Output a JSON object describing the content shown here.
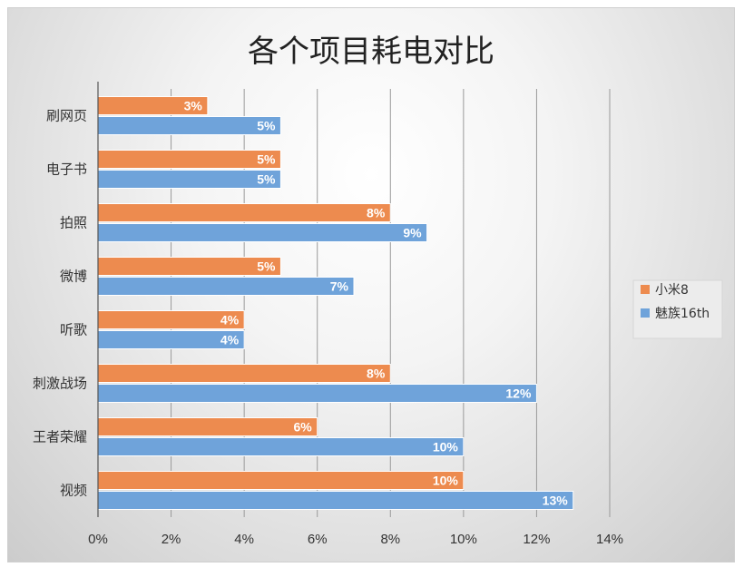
{
  "chart_data": {
    "type": "bar",
    "orientation": "horizontal",
    "title": "各个项目耗电对比",
    "categories": [
      "刷网页",
      "电子书",
      "拍照",
      "微博",
      "听歌",
      "刺激战场",
      "王者荣耀",
      "视频"
    ],
    "series": [
      {
        "name": "小米8",
        "color": "#ED8B4F",
        "values": [
          3,
          5,
          8,
          5,
          4,
          8,
          6,
          10
        ]
      },
      {
        "name": "魅族16th",
        "color": "#6FA3DA",
        "values": [
          5,
          5,
          9,
          7,
          4,
          12,
          10,
          13
        ]
      }
    ],
    "xlim": [
      0,
      14
    ],
    "xticks": [
      0,
      2,
      4,
      6,
      8,
      10,
      12,
      14
    ],
    "tick_suffix": "%",
    "value_suffix": "%",
    "grid": true,
    "legend_position": "right"
  }
}
